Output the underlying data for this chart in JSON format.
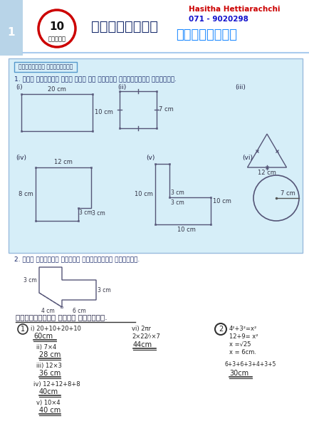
{
  "bg_color": "#ffffff",
  "light_blue": "#cce5f5",
  "header_blue_bg": "#b8d4e8",
  "unit_number": "10",
  "unit_sinhala": "දේනිය",
  "title_sinhala": "පිලිතුරු",
  "subject_sinhala": "පරිමිතිය",
  "teacher_name": "Hasitha Hettiarachchi",
  "teacher_phone": "071 - 9020298",
  "section_label": "ප්‍රශ්නය් අනුශාසනය",
  "q1_text": "1. පහත දර්වැන එක් එක් ථල රුපස් පරිමිතිය සෝයන්න.",
  "q2_text": "2. පහත දර්වැන රුපස් පරිමිතිය සෝයන්න.",
  "answers_title": "පත්‍රස්පන් දවස් විහිතය.",
  "unit_label": "1"
}
